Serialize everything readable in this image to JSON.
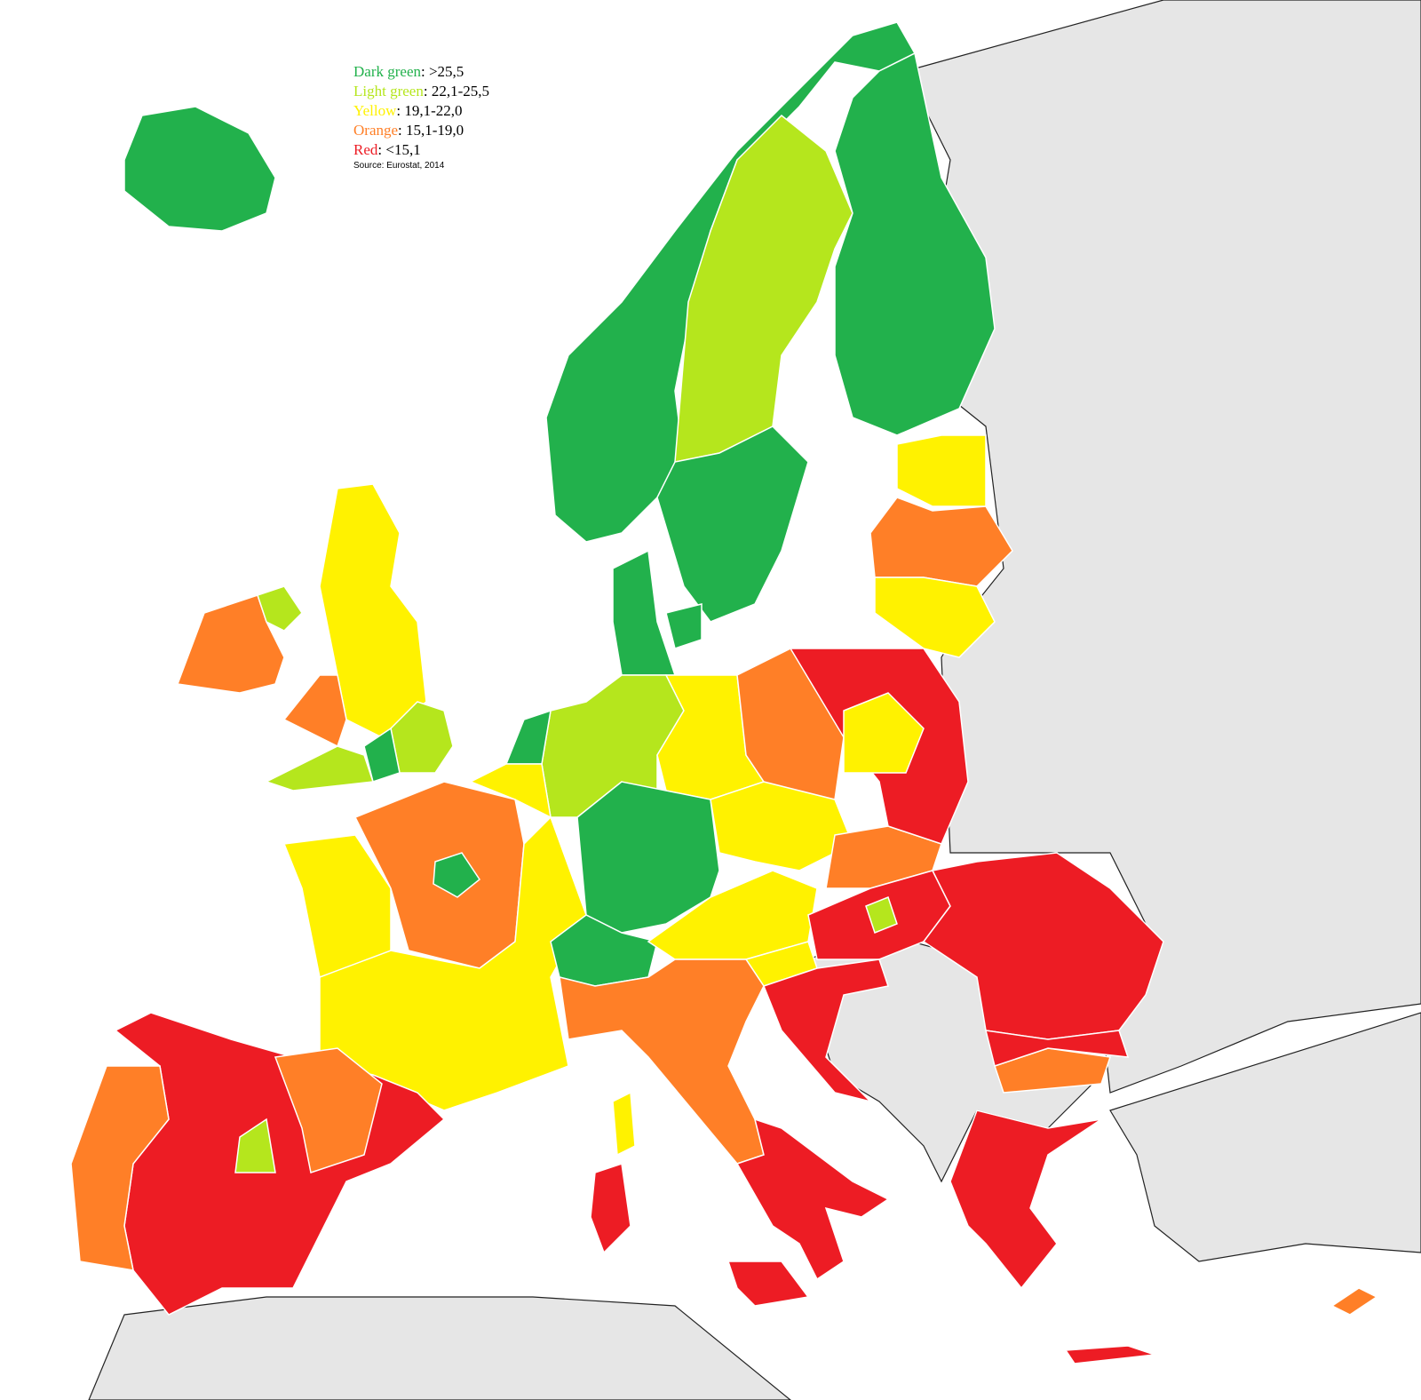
{
  "legend": {
    "items": [
      {
        "label": "Dark green",
        "range": ": >25,5",
        "color": "#22b14c"
      },
      {
        "label": "Light green",
        "range": ": 22,1-25,5",
        "color": "#b5e61d"
      },
      {
        "label": "Yellow",
        "range": ": 19,1-22,0",
        "color": "#fff200"
      },
      {
        "label": "Orange",
        "range": ": 15,1-19,0",
        "color": "#ff7f27"
      },
      {
        "label": "Red",
        "range": ": <15,1",
        "color": "#ed1c24"
      }
    ],
    "source": "Source: Eurostat, 2014"
  }
}
